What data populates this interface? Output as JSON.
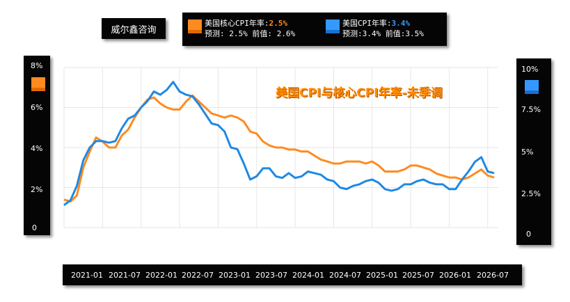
{
  "brand": "威尔鑫咨询",
  "legend": {
    "core": {
      "label": "美国核心CPI年率:",
      "value": "2.5%",
      "sub": "预测: 2.5% 前值: 2.6%",
      "color": "#ff8a1f"
    },
    "headline": {
      "label": "美国CPI年率:",
      "value": "3.4%",
      "sub": "预测:3.4% 前值:3.5%",
      "color": "#3399ff"
    }
  },
  "chart_data": {
    "type": "line",
    "title": "美国CPI与核心CPI年率-未季调",
    "x": [
      "2021-01",
      "2021-02",
      "2021-03",
      "2021-04",
      "2021-05",
      "2021-06",
      "2021-07",
      "2021-08",
      "2021-09",
      "2021-10",
      "2021-11",
      "2021-12",
      "2022-01",
      "2022-02",
      "2022-03",
      "2022-04",
      "2022-05",
      "2022-06",
      "2022-07",
      "2022-08",
      "2022-09",
      "2022-10",
      "2022-11",
      "2022-12",
      "2023-01",
      "2023-02",
      "2023-03",
      "2023-04",
      "2023-05",
      "2023-06",
      "2023-07",
      "2023-08",
      "2023-09",
      "2023-10",
      "2023-11",
      "2023-12",
      "2024-01",
      "2024-02",
      "2024-03",
      "2024-04",
      "2024-05",
      "2024-06",
      "2024-07",
      "2024-08",
      "2024-09",
      "2024-10",
      "2024-11",
      "2024-12",
      "2025-01",
      "2025-02",
      "2025-03",
      "2025-04",
      "2025-05",
      "2025-06",
      "2025-07",
      "2025-08",
      "2025-09",
      "2025-10",
      "2025-11",
      "2025-12",
      "2026-01",
      "2026-02",
      "2026-03",
      "2026-04",
      "2026-05",
      "2026-06",
      "2026-07",
      "2026-08"
    ],
    "x_tick_labels": [
      "2021-01",
      "2021-07",
      "2022-01",
      "2022-07",
      "2023-01",
      "2023-07",
      "2024-01",
      "2024-07",
      "2025-01",
      "2025-07",
      "2026-01",
      "2026-07"
    ],
    "series": [
      {
        "name": "美国核心CPI年率",
        "axis": "left",
        "color": "#ff8a1f",
        "values": [
          1.4,
          1.3,
          1.6,
          3.0,
          3.8,
          4.5,
          4.3,
          4.0,
          4.0,
          4.6,
          4.9,
          5.5,
          6.0,
          6.4,
          6.5,
          6.2,
          6.0,
          5.9,
          5.9,
          6.3,
          6.6,
          6.3,
          6.0,
          5.7,
          5.6,
          5.5,
          5.6,
          5.5,
          5.3,
          4.8,
          4.7,
          4.3,
          4.1,
          4.0,
          4.0,
          3.9,
          3.9,
          3.8,
          3.8,
          3.6,
          3.4,
          3.3,
          3.2,
          3.2,
          3.3,
          3.3,
          3.3,
          3.2,
          3.3,
          3.1,
          2.8,
          2.8,
          2.8,
          2.9,
          3.1,
          3.1,
          3.0,
          2.9,
          2.7,
          2.6,
          2.5,
          2.5,
          2.4,
          2.5,
          2.7,
          2.9,
          2.6,
          2.5
        ]
      },
      {
        "name": "美国CPI年率",
        "axis": "right",
        "color": "#1e88e5",
        "values": [
          1.4,
          1.7,
          2.6,
          4.2,
          5.0,
          5.4,
          5.4,
          5.3,
          5.4,
          6.2,
          6.8,
          7.0,
          7.5,
          7.9,
          8.5,
          8.3,
          8.6,
          9.1,
          8.5,
          8.3,
          8.2,
          7.7,
          7.1,
          6.5,
          6.4,
          6.0,
          5.0,
          4.9,
          4.0,
          3.0,
          3.2,
          3.7,
          3.7,
          3.2,
          3.1,
          3.4,
          3.1,
          3.2,
          3.5,
          3.4,
          3.3,
          3.0,
          2.9,
          2.5,
          2.4,
          2.6,
          2.7,
          2.9,
          3.0,
          2.8,
          2.4,
          2.3,
          2.4,
          2.7,
          2.7,
          2.9,
          3.0,
          2.8,
          2.7,
          2.7,
          2.4,
          2.4,
          3.0,
          3.5,
          4.1,
          4.4,
          3.5,
          3.4
        ]
      }
    ],
    "left_axis": {
      "ticks": [
        "8%",
        "6%",
        "4%",
        "2%",
        "0"
      ],
      "ylim": [
        0,
        8
      ]
    },
    "right_axis": {
      "ticks": [
        "10%",
        "7.5%",
        "5%",
        "2.5%",
        "0"
      ],
      "ylim": [
        0,
        10
      ]
    },
    "grid": true
  }
}
